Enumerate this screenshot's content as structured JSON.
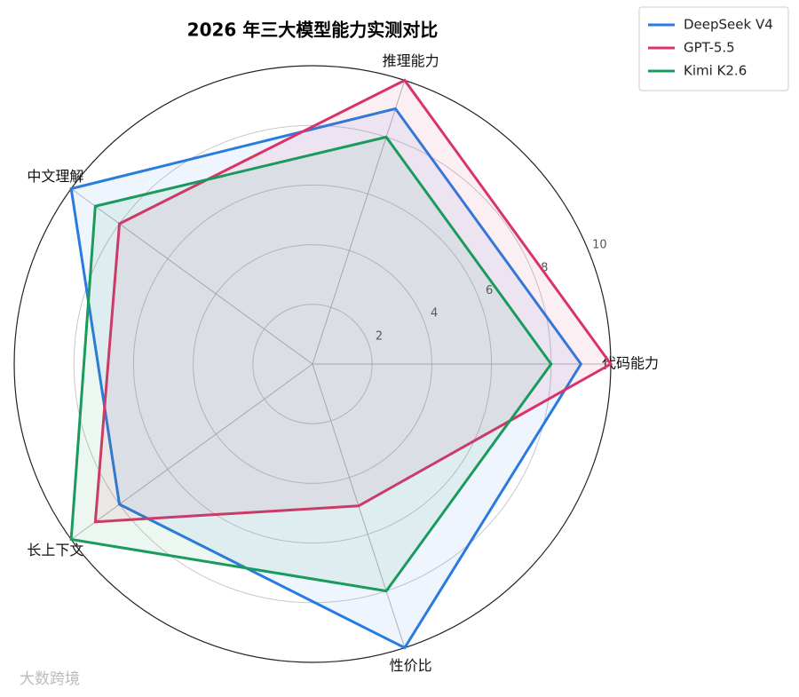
{
  "chart_data": {
    "type": "radar",
    "title": "2026 年三大模型能力实测对比",
    "categories": [
      "代码能力",
      "推理能力",
      "中文理解",
      "长上下文",
      "性价比"
    ],
    "series": [
      {
        "name": "DeepSeek V4",
        "color": "#2a7be0",
        "values": [
          9,
          9,
          10,
          8,
          10
        ]
      },
      {
        "name": "GPT-5.5",
        "color": "#d9336a",
        "values": [
          10,
          10,
          8,
          9,
          5
        ]
      },
      {
        "name": "Kimi K2.6",
        "color": "#1b9a5e",
        "values": [
          8,
          8,
          9,
          10,
          8
        ]
      }
    ],
    "rlim": [
      0,
      10
    ],
    "rticks": [
      2,
      4,
      6,
      8,
      10
    ],
    "grid": true,
    "legend": "upper right",
    "watermark": "大数跨境"
  }
}
